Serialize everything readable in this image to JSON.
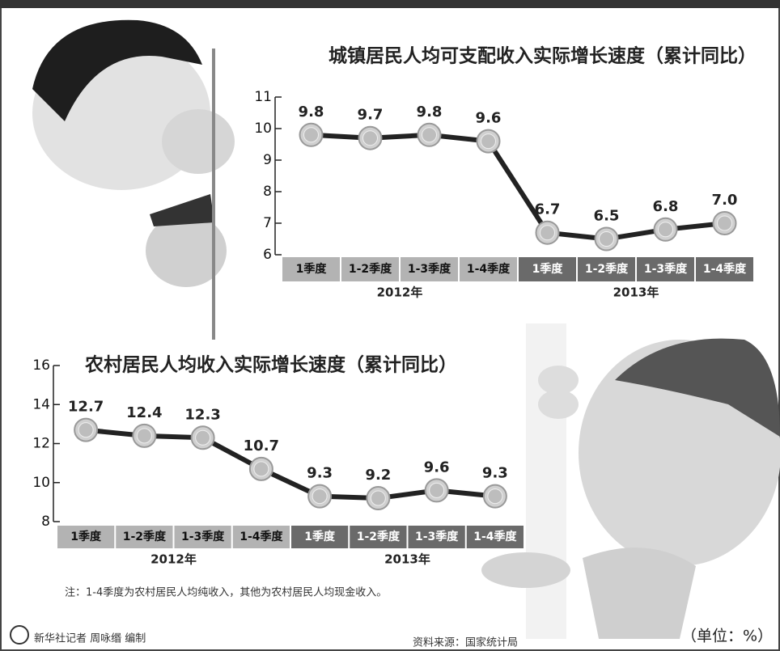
{
  "chart_data": [
    {
      "type": "line",
      "title": "城镇居民人均可支配收入实际增长速度（累计同比）",
      "categories": [
        "1季度",
        "1-2季度",
        "1-3季度",
        "1-4季度",
        "1季度",
        "1-2季度",
        "1-3季度",
        "1-4季度"
      ],
      "category_groups": [
        "2012年",
        "2013年"
      ],
      "values": [
        9.8,
        9.7,
        9.8,
        9.6,
        6.7,
        6.5,
        6.8,
        7.0
      ],
      "value_labels": [
        "9.8",
        "9.7",
        "9.8",
        "9.6",
        "6.7",
        "6.5",
        "6.8",
        "7.0"
      ],
      "color": "#222222",
      "ylim": [
        6,
        11
      ],
      "yticks": [
        6,
        7,
        8,
        9,
        10,
        11
      ]
    },
    {
      "type": "line",
      "title": "农村居民人均收入实际增长速度（累计同比）",
      "categories": [
        "1季度",
        "1-2季度",
        "1-3季度",
        "1-4季度",
        "1季度",
        "1-2季度",
        "1-3季度",
        "1-4季度"
      ],
      "category_groups": [
        "2012年",
        "2013年"
      ],
      "values": [
        12.7,
        12.4,
        12.3,
        10.7,
        9.3,
        9.2,
        9.6,
        9.3
      ],
      "color": "#222222",
      "ylim": [
        8,
        16
      ],
      "yticks": [
        8,
        10,
        12,
        14,
        16
      ]
    }
  ],
  "note": "注：1-4季度为农村居民人均纯收入，其他为农村居民人均现金收入。",
  "credit": "新华社记者 周咏缗 编制",
  "source": "资料来源：国家统计局",
  "unit": "（单位：%）"
}
